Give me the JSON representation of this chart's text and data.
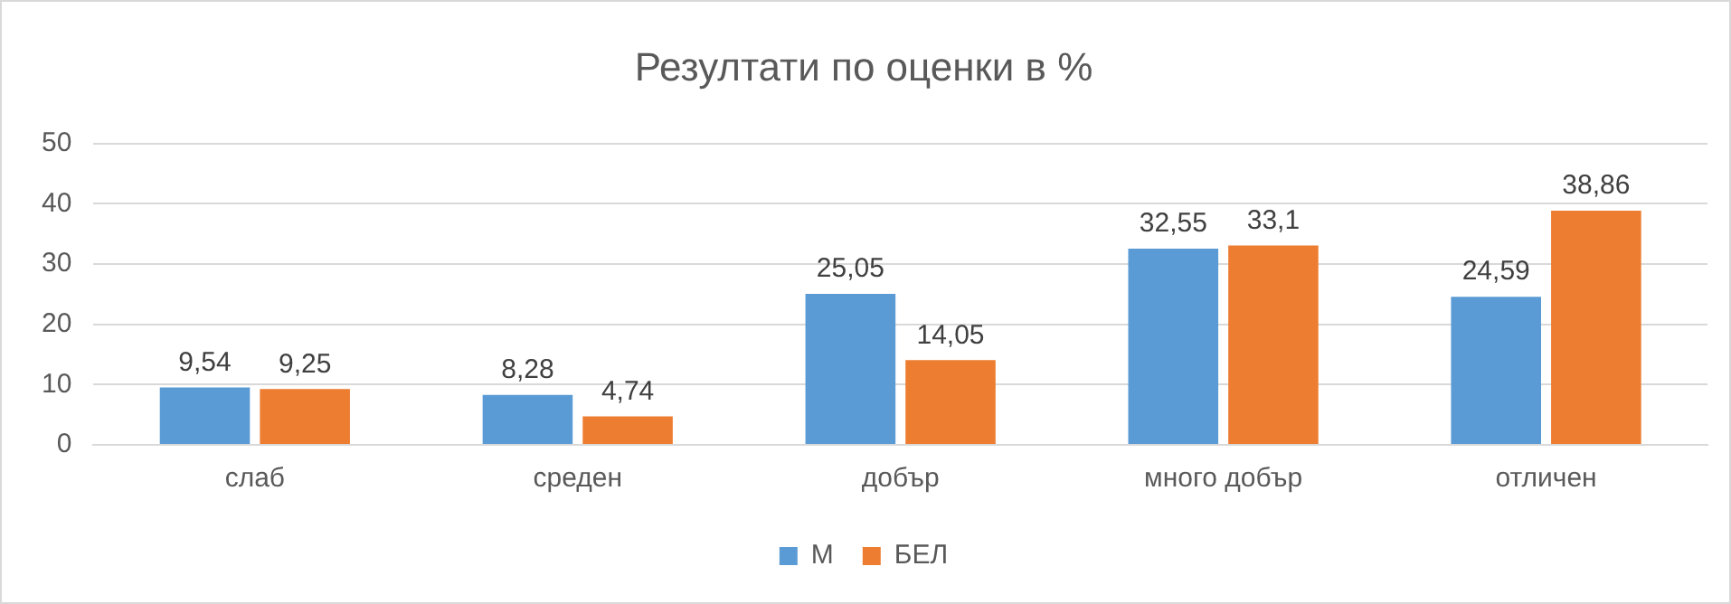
{
  "chart_data": {
    "type": "bar",
    "title": "Резултати по оценки в %",
    "categories": [
      "слаб",
      "среден",
      "добър",
      "много добър",
      "отличен"
    ],
    "series": [
      {
        "name": "М",
        "color": "#5b9bd5",
        "values": [
          9.54,
          8.28,
          25.05,
          32.55,
          24.59
        ],
        "value_labels": [
          "9,54",
          "8,28",
          "25,05",
          "32,55",
          "24,59"
        ]
      },
      {
        "name": "БЕЛ",
        "color": "#ed7d31",
        "values": [
          9.25,
          4.74,
          14.05,
          33.1,
          38.86
        ],
        "value_labels": [
          "9,25",
          "4,74",
          "14,05",
          "33,1",
          "38,86"
        ]
      }
    ],
    "ylim": [
      0,
      50
    ],
    "yticks": [
      0,
      10,
      20,
      30,
      40,
      50
    ],
    "grid": "y",
    "legend": "bottom"
  }
}
